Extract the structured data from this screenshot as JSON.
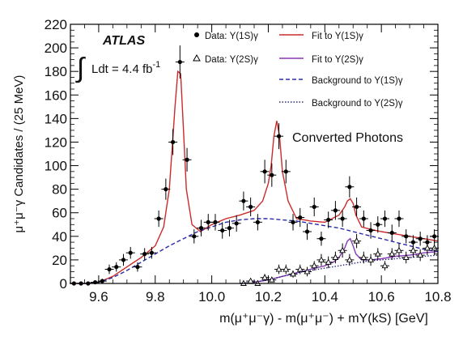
{
  "chart_data": {
    "type": "scatter",
    "title": "",
    "xlabel": "m(μ⁺μ⁻γ) - m(μ⁺μ⁻) + mΥ(kS) [GeV]",
    "ylabel": "μ⁺μ⁻γ Candidates / (25 MeV)",
    "xlim": [
      9.5,
      10.8
    ],
    "ylim": [
      0,
      220
    ],
    "x_ticks": [
      "9.6",
      "9.8",
      "10.0",
      "10.2",
      "10.4",
      "10.6",
      "10.8"
    ],
    "y_ticks": [
      "0",
      "20",
      "40",
      "60",
      "80",
      "100",
      "120",
      "140",
      "160",
      "180",
      "200",
      "220"
    ],
    "annotations": {
      "experiment": "ATLAS",
      "lumi_prefix": "Ldt = 4.4 fb",
      "lumi_exp": "-1",
      "selection": "Converted Photons"
    },
    "legend": {
      "position": "top-right",
      "entries": [
        {
          "label": "Data: Υ(1S)γ",
          "style": "filled-circle",
          "color": "#000000"
        },
        {
          "label": "Data: Υ(2S)γ",
          "style": "open-triangle",
          "color": "#000000"
        },
        {
          "label": "Fit to Υ(1S)γ",
          "style": "line",
          "color": "#cc2a2a"
        },
        {
          "label": "Fit to Υ(2S)γ",
          "style": "line",
          "color": "#8a3ab4"
        },
        {
          "label": "Background to Υ(1S)γ",
          "style": "dashed",
          "color": "#2a2aa8"
        },
        {
          "label": "Background to Υ(2S)γ",
          "style": "dotted",
          "color": "#2a2a7a"
        }
      ]
    },
    "series": [
      {
        "name": "Data: Υ(1S)γ",
        "marker": "circle",
        "color": "#000000",
        "x": [
          9.5125,
          9.5375,
          9.5625,
          9.5875,
          9.6125,
          9.6375,
          9.6625,
          9.6875,
          9.7125,
          9.7375,
          9.7625,
          9.7875,
          9.8125,
          9.8375,
          9.8625,
          9.8875,
          9.9125,
          9.9375,
          9.9625,
          9.9875,
          10.0125,
          10.0375,
          10.0625,
          10.0875,
          10.1125,
          10.1375,
          10.1625,
          10.1875,
          10.2125,
          10.2375,
          10.2625,
          10.2875,
          10.3125,
          10.3375,
          10.3625,
          10.3875,
          10.4125,
          10.4375,
          10.4625,
          10.4875,
          10.5125,
          10.5375,
          10.5625,
          10.5875,
          10.6125,
          10.6375,
          10.6625,
          10.6875,
          10.7125,
          10.7375,
          10.7625,
          10.7875
        ],
        "y": [
          0,
          0,
          0,
          1,
          2,
          12,
          14,
          20,
          26,
          14,
          25,
          26,
          55,
          80,
          120,
          188,
          105,
          40,
          47,
          52,
          52,
          45,
          47,
          51,
          70,
          65,
          52,
          95,
          92,
          125,
          95,
          52,
          56,
          44,
          65,
          38,
          54,
          62,
          55,
          82,
          65,
          55,
          45,
          50,
          55,
          43,
          55,
          40,
          35,
          38,
          35,
          40
        ],
        "error": [
          1,
          1,
          1,
          1,
          2,
          4,
          4,
          5,
          5,
          4,
          5,
          5,
          7,
          9,
          11,
          14,
          10,
          6,
          7,
          7,
          7,
          7,
          7,
          7,
          8,
          8,
          7,
          10,
          10,
          11,
          10,
          7,
          8,
          7,
          8,
          6,
          7,
          8,
          7,
          9,
          8,
          7,
          7,
          7,
          7,
          7,
          7,
          6,
          6,
          6,
          6,
          6
        ]
      },
      {
        "name": "Data: Υ(2S)γ",
        "marker": "triangle-open",
        "color": "#000000",
        "x": [
          10.1125,
          10.1375,
          10.1625,
          10.1875,
          10.2125,
          10.2375,
          10.2625,
          10.2875,
          10.3125,
          10.3375,
          10.3625,
          10.3875,
          10.4125,
          10.4375,
          10.4625,
          10.4875,
          10.5125,
          10.5375,
          10.5625,
          10.5875,
          10.6125,
          10.6375,
          10.6625,
          10.6875,
          10.7125,
          10.7375,
          10.7625,
          10.7875
        ],
        "y": [
          0,
          2,
          0,
          5,
          3,
          12,
          12,
          8,
          12,
          10,
          15,
          20,
          18,
          22,
          28,
          20,
          36,
          22,
          20,
          25,
          15,
          25,
          28,
          22,
          28,
          24,
          30,
          30
        ],
        "error": [
          1,
          2,
          1,
          3,
          2,
          4,
          4,
          3,
          4,
          4,
          4,
          5,
          5,
          5,
          6,
          5,
          6,
          5,
          5,
          5,
          4,
          5,
          6,
          5,
          6,
          5,
          6,
          6
        ]
      }
    ],
    "curves": [
      {
        "name": "Fit to Υ(1S)γ",
        "color": "#cc2a2a",
        "style": "solid",
        "x": [
          9.5,
          9.55,
          9.6,
          9.65,
          9.7,
          9.75,
          9.8,
          9.83,
          9.85,
          9.87,
          9.88,
          9.89,
          9.9,
          9.91,
          9.93,
          9.96,
          10.0,
          10.05,
          10.1,
          10.15,
          10.18,
          10.2,
          10.21,
          10.22,
          10.23,
          10.24,
          10.25,
          10.27,
          10.3,
          10.35,
          10.4,
          10.45,
          10.47,
          10.48,
          10.49,
          10.5,
          10.51,
          10.53,
          10.56,
          10.6,
          10.65,
          10.7,
          10.75,
          10.8
        ],
        "y": [
          0,
          0,
          1,
          6,
          14,
          22,
          32,
          48,
          80,
          150,
          180,
          178,
          130,
          80,
          50,
          44,
          50,
          55,
          58,
          62,
          70,
          85,
          100,
          125,
          138,
          125,
          95,
          70,
          55,
          53,
          52,
          58,
          65,
          70,
          72,
          68,
          58,
          48,
          46,
          44,
          42,
          40,
          38,
          36
        ]
      },
      {
        "name": "Fit to Υ(2S)γ",
        "color": "#8a3ab4",
        "style": "solid",
        "x": [
          10.1,
          10.15,
          10.2,
          10.25,
          10.3,
          10.35,
          10.4,
          10.43,
          10.45,
          10.47,
          10.48,
          10.49,
          10.5,
          10.51,
          10.53,
          10.56,
          10.6,
          10.65,
          10.7,
          10.75,
          10.8
        ],
        "y": [
          0,
          1,
          3,
          6,
          9,
          12,
          15,
          18,
          22,
          30,
          36,
          38,
          32,
          25,
          20,
          20,
          21,
          23,
          24,
          26,
          27
        ]
      },
      {
        "name": "Background to Υ(1S)γ",
        "color": "#2a2aa8",
        "style": "dashed",
        "x": [
          9.5,
          9.55,
          9.6,
          9.65,
          9.7,
          9.75,
          9.8,
          9.85,
          9.9,
          9.95,
          10.0,
          10.05,
          10.1,
          10.15,
          10.2,
          10.25,
          10.3,
          10.35,
          10.4,
          10.45,
          10.5,
          10.55,
          10.6,
          10.65,
          10.7,
          10.75,
          10.8
        ],
        "y": [
          0,
          0,
          1,
          5,
          11,
          18,
          25,
          32,
          38,
          44,
          48,
          52,
          54,
          55,
          55,
          54,
          53,
          51,
          49,
          47,
          44,
          41,
          38,
          35,
          32,
          29,
          27
        ]
      },
      {
        "name": "Background to Υ(2S)γ",
        "color": "#2a2a7a",
        "style": "dotted",
        "x": [
          10.1,
          10.15,
          10.2,
          10.25,
          10.3,
          10.35,
          10.4,
          10.45,
          10.5,
          10.55,
          10.6,
          10.65,
          10.7,
          10.75,
          10.8
        ],
        "y": [
          0,
          1,
          3,
          6,
          9,
          11,
          13,
          15,
          17,
          19,
          20,
          21,
          22,
          23,
          24
        ]
      }
    ]
  }
}
